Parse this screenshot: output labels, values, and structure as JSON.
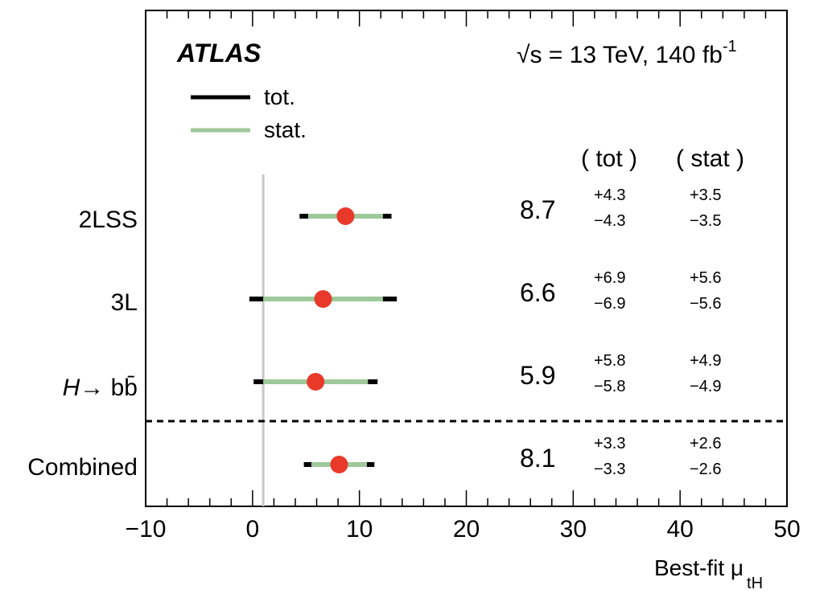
{
  "chart_data": {
    "type": "forest",
    "experiment": "ATLAS",
    "energy_label": "√s = 13 TeV, 140 fb",
    "energy_sup": "-1",
    "legend": [
      {
        "label": "tot.",
        "color": "#000000"
      },
      {
        "label": "stat.",
        "color": "#9ec99a"
      }
    ],
    "column_headers": {
      "tot": "( tot )",
      "stat": "( stat )"
    },
    "xlabel": "Best-fit μ",
    "xlabel_sub": "tH",
    "xlim": [
      -10,
      50
    ],
    "xticks": [
      -10,
      0,
      10,
      20,
      30,
      40,
      50
    ],
    "xtick_labels": [
      "−10",
      "0",
      "10",
      "20",
      "30",
      "40",
      "50"
    ],
    "reference_line": 1,
    "entries": [
      {
        "label": "2LSS",
        "value": 8.7,
        "value_text": "8.7",
        "tot_up": 4.3,
        "tot_down": 4.3,
        "stat_up": 3.5,
        "stat_down": 3.5,
        "tot_up_text": "+4.3",
        "tot_down_text": "−4.3",
        "stat_up_text": "+3.5",
        "stat_down_text": "−3.5"
      },
      {
        "label": "3L",
        "value": 6.6,
        "value_text": "6.6",
        "tot_up": 6.9,
        "tot_down": 6.9,
        "stat_up": 5.6,
        "stat_down": 5.6,
        "tot_up_text": "+6.9",
        "tot_down_text": "−6.9",
        "stat_up_text": "+5.6",
        "stat_down_text": "−5.6"
      },
      {
        "label": "H→ bb̄",
        "value": 5.9,
        "value_text": "5.9",
        "tot_up": 5.8,
        "tot_down": 5.8,
        "stat_up": 4.9,
        "stat_down": 4.9,
        "tot_up_text": "+5.8",
        "tot_down_text": "−5.8",
        "stat_up_text": "+4.9",
        "stat_down_text": "−4.9"
      },
      {
        "label": "Combined",
        "value": 8.1,
        "value_text": "8.1",
        "tot_up": 3.3,
        "tot_down": 3.3,
        "stat_up": 2.6,
        "stat_down": 2.6,
        "tot_up_text": "+3.3",
        "tot_down_text": "−3.3",
        "stat_up_text": "+2.6",
        "stat_down_text": "−2.6"
      }
    ],
    "colors": {
      "point": "#e8392a",
      "tot": "#000000",
      "stat": "#9ec99a",
      "reference": "#c8c8c8"
    }
  }
}
